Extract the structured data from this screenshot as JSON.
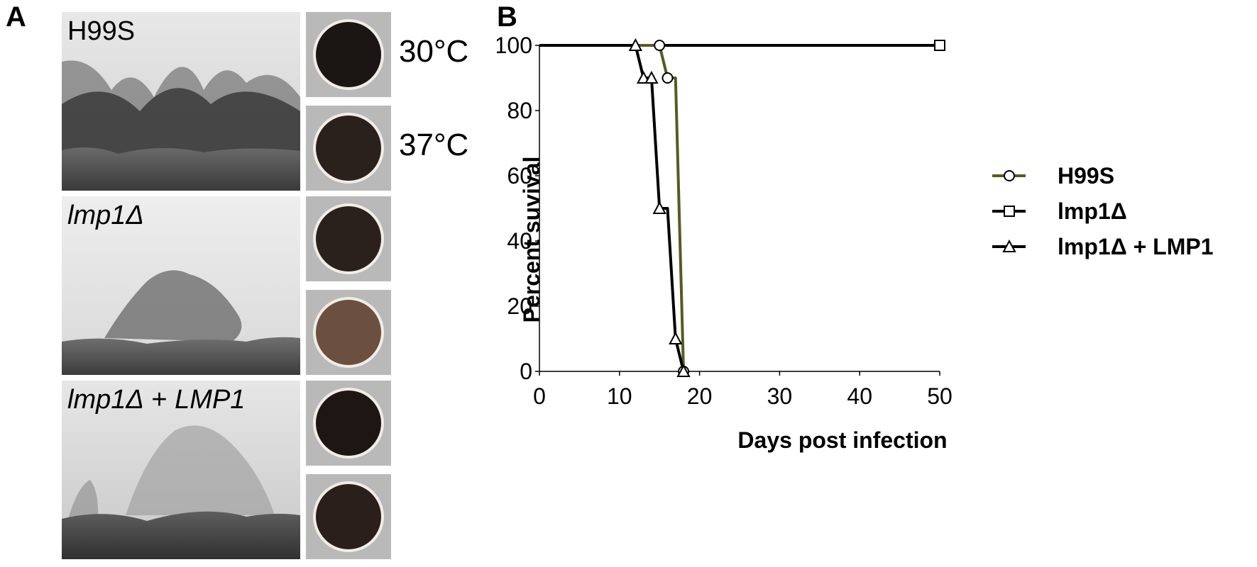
{
  "panel_a": {
    "letter": "A",
    "temperature_labels": [
      "30°C",
      "37°C"
    ],
    "rows": [
      {
        "label_plain": "H99S",
        "label_italic": "",
        "label_suffix": "",
        "label_suffix_italic": "",
        "colony_colors": [
          "#1b1513",
          "#2b211c"
        ]
      },
      {
        "label_plain": "",
        "label_italic": "lmp1Δ",
        "label_suffix": "",
        "label_suffix_italic": "",
        "colony_colors": [
          "#2b211c",
          "#6b5040"
        ]
      },
      {
        "label_plain": "",
        "label_italic": "lmp1Δ",
        "label_suffix": " + ",
        "label_suffix_italic": "LMP1",
        "colony_colors": [
          "#1d1613",
          "#2a1f1a"
        ]
      }
    ]
  },
  "panel_b": {
    "letter": "B"
  },
  "chart_data": {
    "type": "line",
    "xlabel": "Days post infection",
    "ylabel": "Percent suvival",
    "xlim": [
      0,
      50
    ],
    "ylim": [
      0,
      100
    ],
    "x_ticks": [
      0,
      10,
      20,
      30,
      40,
      50
    ],
    "y_ticks": [
      0,
      20,
      40,
      60,
      80,
      100
    ],
    "legend_position": "right",
    "step": true,
    "series": [
      {
        "name": "H99S",
        "marker": "circle",
        "color": "#5a5a1e",
        "x": [
          0,
          15,
          16,
          17,
          18
        ],
        "y": [
          100,
          100,
          90,
          90,
          0
        ],
        "marker_points": [
          [
            15,
            100
          ],
          [
            16,
            90
          ],
          [
            18,
            0
          ]
        ]
      },
      {
        "name": "lmp1Δ",
        "marker": "square",
        "color": "#000000",
        "x": [
          0,
          50
        ],
        "y": [
          100,
          100
        ],
        "marker_points": [
          [
            50,
            100
          ]
        ]
      },
      {
        "name": "lmp1Δ + LMP1",
        "marker": "triangle",
        "color": "#000000",
        "x": [
          0,
          12,
          13,
          14,
          15,
          16,
          17,
          18
        ],
        "y": [
          100,
          100,
          90,
          90,
          50,
          50,
          10,
          0
        ],
        "marker_points": [
          [
            12,
            100
          ],
          [
            13,
            90
          ],
          [
            14,
            90
          ],
          [
            15,
            50
          ],
          [
            17,
            10
          ],
          [
            18,
            0
          ]
        ]
      }
    ]
  }
}
